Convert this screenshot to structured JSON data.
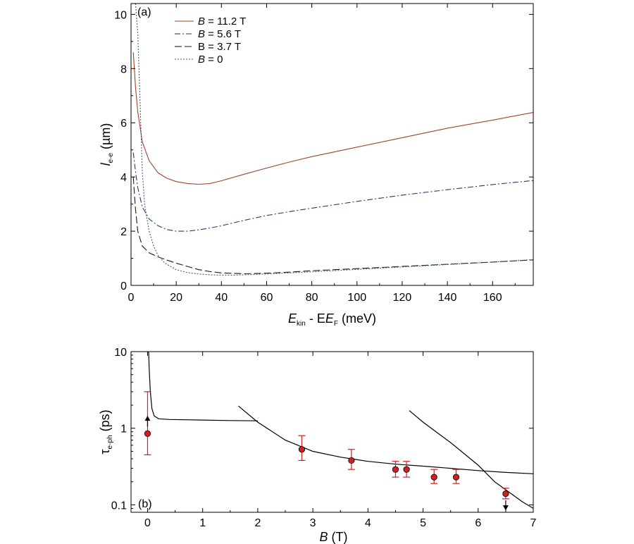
{
  "chart_data": [
    {
      "panel": "(a)",
      "type": "line",
      "xlabel": {
        "main": "E",
        "sub1": "kin",
        "mid": " - E",
        "sub2": "F",
        "tail": " (meV)"
      },
      "ylabel": {
        "main": "l",
        "sub": "e-e",
        "tail": " (µm)"
      },
      "xlim": [
        0,
        178
      ],
      "ylim": [
        0,
        10.4
      ],
      "xticks": [
        0,
        20,
        40,
        60,
        80,
        100,
        120,
        140,
        160
      ],
      "yticks": [
        0,
        2,
        4,
        6,
        8,
        10
      ],
      "grid": false,
      "legend_position": "top-left",
      "series": [
        {
          "name": "B = 11.2 T",
          "label_italic_part": "B",
          "label_rest": " = 11.2 T",
          "color": "#a0442c",
          "dash": "",
          "x": [
            1,
            2,
            3,
            5,
            8,
            12,
            16,
            20,
            25,
            30,
            35,
            40,
            50,
            60,
            70,
            80,
            100,
            120,
            140,
            160,
            178
          ],
          "y": [
            8.6,
            7.3,
            6.4,
            5.3,
            4.6,
            4.15,
            3.95,
            3.83,
            3.76,
            3.73,
            3.76,
            3.86,
            4.1,
            4.33,
            4.55,
            4.75,
            5.1,
            5.45,
            5.8,
            6.1,
            6.38
          ]
        },
        {
          "name": "B = 5.6 T",
          "label_italic_part": "B",
          "label_rest": " = 5.6 T",
          "color": "#2a3a66",
          "dash": "8,3,2,3",
          "x": [
            1,
            2,
            3,
            5,
            8,
            12,
            16,
            20,
            25,
            30,
            35,
            40,
            50,
            60,
            70,
            80,
            100,
            120,
            140,
            160,
            178
          ],
          "y": [
            4.9,
            4.2,
            3.6,
            2.9,
            2.45,
            2.2,
            2.06,
            2.0,
            2.0,
            2.05,
            2.12,
            2.2,
            2.4,
            2.58,
            2.72,
            2.85,
            3.1,
            3.33,
            3.53,
            3.72,
            3.87
          ]
        },
        {
          "name": "B = 3.7 T",
          "label_italic_part": "",
          "label_rest": "B = 3.7 T",
          "color": "#1a1a1a",
          "dash": "10,4",
          "x": [
            1,
            2,
            3,
            5,
            8,
            12,
            16,
            20,
            25,
            30,
            35,
            40,
            50,
            60,
            70,
            80,
            100,
            120,
            140,
            160,
            178
          ],
          "y": [
            4.0,
            2.8,
            2.0,
            1.45,
            1.2,
            1.05,
            0.93,
            0.82,
            0.7,
            0.58,
            0.51,
            0.46,
            0.43,
            0.45,
            0.49,
            0.54,
            0.62,
            0.7,
            0.78,
            0.86,
            0.94
          ]
        },
        {
          "name": "B = 0",
          "label_italic_part": "B",
          "label_rest": " = 0",
          "color": "#3a5c72",
          "dash": "2,2",
          "x": [
            2,
            3,
            4,
            5,
            6,
            8,
            10,
            12,
            15,
            20,
            25,
            30,
            35,
            40,
            45,
            50,
            60,
            70,
            80,
            100,
            120,
            140,
            160,
            178
          ],
          "y": [
            10.4,
            9.3,
            6.8,
            4.2,
            3.0,
            2.0,
            1.45,
            1.1,
            0.82,
            0.58,
            0.47,
            0.42,
            0.39,
            0.38,
            0.38,
            0.39,
            0.42,
            0.46,
            0.5,
            0.59,
            0.68,
            0.77,
            0.86,
            0.95
          ]
        }
      ]
    },
    {
      "panel": "(b)",
      "type": "scatter",
      "xlabel": {
        "main": "B",
        "tail": " (T)"
      },
      "ylabel": {
        "main": "τ",
        "sub": "e-ph",
        "tail": " (ps)"
      },
      "xlim": [
        -0.3,
        7
      ],
      "ylim": [
        0.08,
        10
      ],
      "yscale": "log",
      "xticks": [
        0,
        1,
        2,
        3,
        4,
        5,
        6,
        7
      ],
      "yticks": [
        0.1,
        1,
        10
      ],
      "ytick_labels": [
        "0.1",
        "1",
        "10"
      ],
      "grid": false,
      "marker_color": "#cc2222",
      "errorbar_color": "#cc2222",
      "points": [
        {
          "x": 0.0,
          "y": 0.85,
          "ylo": 0.45,
          "yhi": 3.0
        },
        {
          "x": 2.8,
          "y": 0.53,
          "ylo": 0.38,
          "yhi": 0.8
        },
        {
          "x": 3.7,
          "y": 0.38,
          "ylo": 0.29,
          "yhi": 0.53
        },
        {
          "x": 4.5,
          "y": 0.29,
          "ylo": 0.23,
          "yhi": 0.37
        },
        {
          "x": 4.7,
          "y": 0.29,
          "ylo": 0.23,
          "yhi": 0.37
        },
        {
          "x": 5.2,
          "y": 0.23,
          "ylo": 0.19,
          "yhi": 0.29
        },
        {
          "x": 5.6,
          "y": 0.23,
          "ylo": 0.19,
          "yhi": 0.29
        },
        {
          "x": 6.5,
          "y": 0.14,
          "ylo": 0.12,
          "yhi": 0.165
        }
      ],
      "arrows": [
        {
          "x": 0.0,
          "from": 1.05,
          "to": 1.45,
          "direction": "up"
        },
        {
          "x": 6.5,
          "from": 0.115,
          "to": 0.085,
          "direction": "down"
        }
      ],
      "curves": [
        {
          "name": "curve-low-field",
          "color": "#000000",
          "x": [
            0.02,
            0.03,
            0.05,
            0.08,
            0.12,
            0.2,
            0.4,
            0.7,
            1.0,
            1.5,
            2.0
          ],
          "y": [
            10,
            6.0,
            3.0,
            1.8,
            1.45,
            1.33,
            1.3,
            1.29,
            1.28,
            1.26,
            1.25
          ]
        },
        {
          "name": "curve-mid-field",
          "color": "#000000",
          "x": [
            1.65,
            2.0,
            2.5,
            3.0,
            3.5,
            4.0,
            4.5,
            5.0,
            5.5,
            6.0,
            6.5,
            7.0
          ],
          "y": [
            1.95,
            1.2,
            0.7,
            0.5,
            0.42,
            0.37,
            0.34,
            0.32,
            0.3,
            0.28,
            0.265,
            0.255
          ]
        },
        {
          "name": "curve-high-field",
          "color": "#000000",
          "x": [
            4.75,
            5.0,
            5.5,
            6.0,
            6.3,
            6.6,
            6.8,
            7.0
          ],
          "y": [
            1.7,
            1.2,
            0.65,
            0.33,
            0.2,
            0.14,
            0.11,
            0.09
          ]
        }
      ]
    }
  ]
}
